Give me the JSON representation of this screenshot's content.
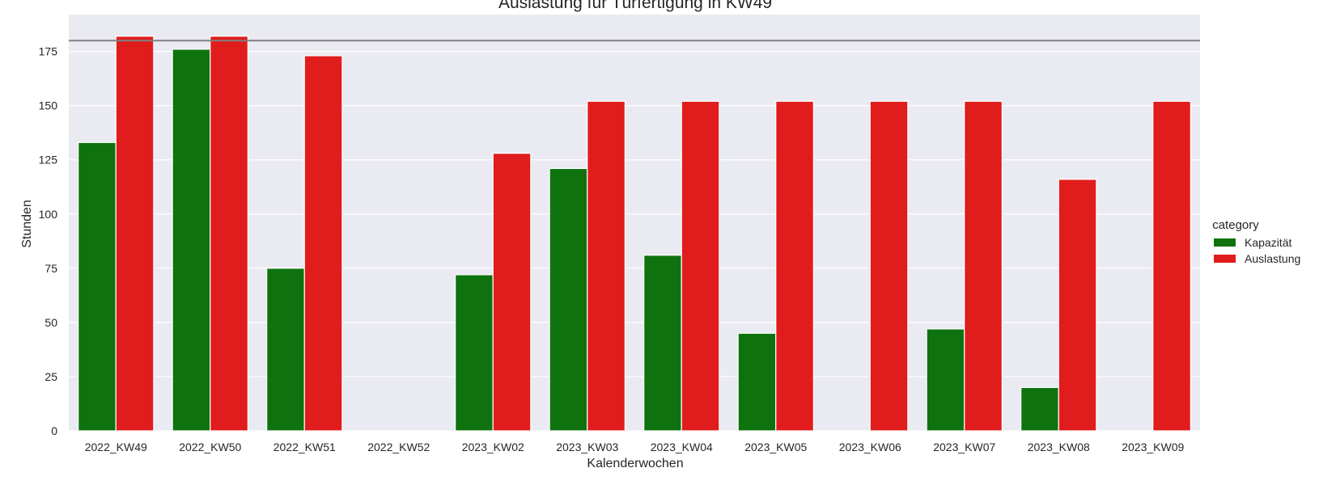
{
  "chart_data": {
    "type": "bar",
    "title": "Auslastung für Türfertigung in KW49",
    "xlabel": "Kalenderwochen",
    "ylabel": "Stunden",
    "ylim": [
      0,
      192
    ],
    "yticks": [
      0,
      25,
      50,
      75,
      100,
      125,
      150,
      175
    ],
    "grid": true,
    "reference_line": {
      "y": 180,
      "color": "#808080"
    },
    "categories": [
      "2022_KW49",
      "2022_KW50",
      "2022_KW51",
      "2022_KW52",
      "2023_KW02",
      "2023_KW03",
      "2023_KW04",
      "2023_KW05",
      "2023_KW06",
      "2023_KW07",
      "2023_KW08",
      "2023_KW09"
    ],
    "series": [
      {
        "name": "Kapazität",
        "color": "#0e730e",
        "values": [
          133,
          176,
          75,
          0,
          72,
          121,
          81,
          45,
          0,
          47,
          20,
          0
        ]
      },
      {
        "name": "Auslastung",
        "color": "#e01c1c",
        "values": [
          182,
          182,
          173,
          0,
          128,
          152,
          152,
          152,
          152,
          152,
          116,
          152
        ]
      }
    ],
    "legend": {
      "title": "category",
      "position": "right"
    }
  },
  "colors": {
    "plot_background": "#eaeaf2",
    "grid": "#ffffff",
    "text": "#262626"
  }
}
